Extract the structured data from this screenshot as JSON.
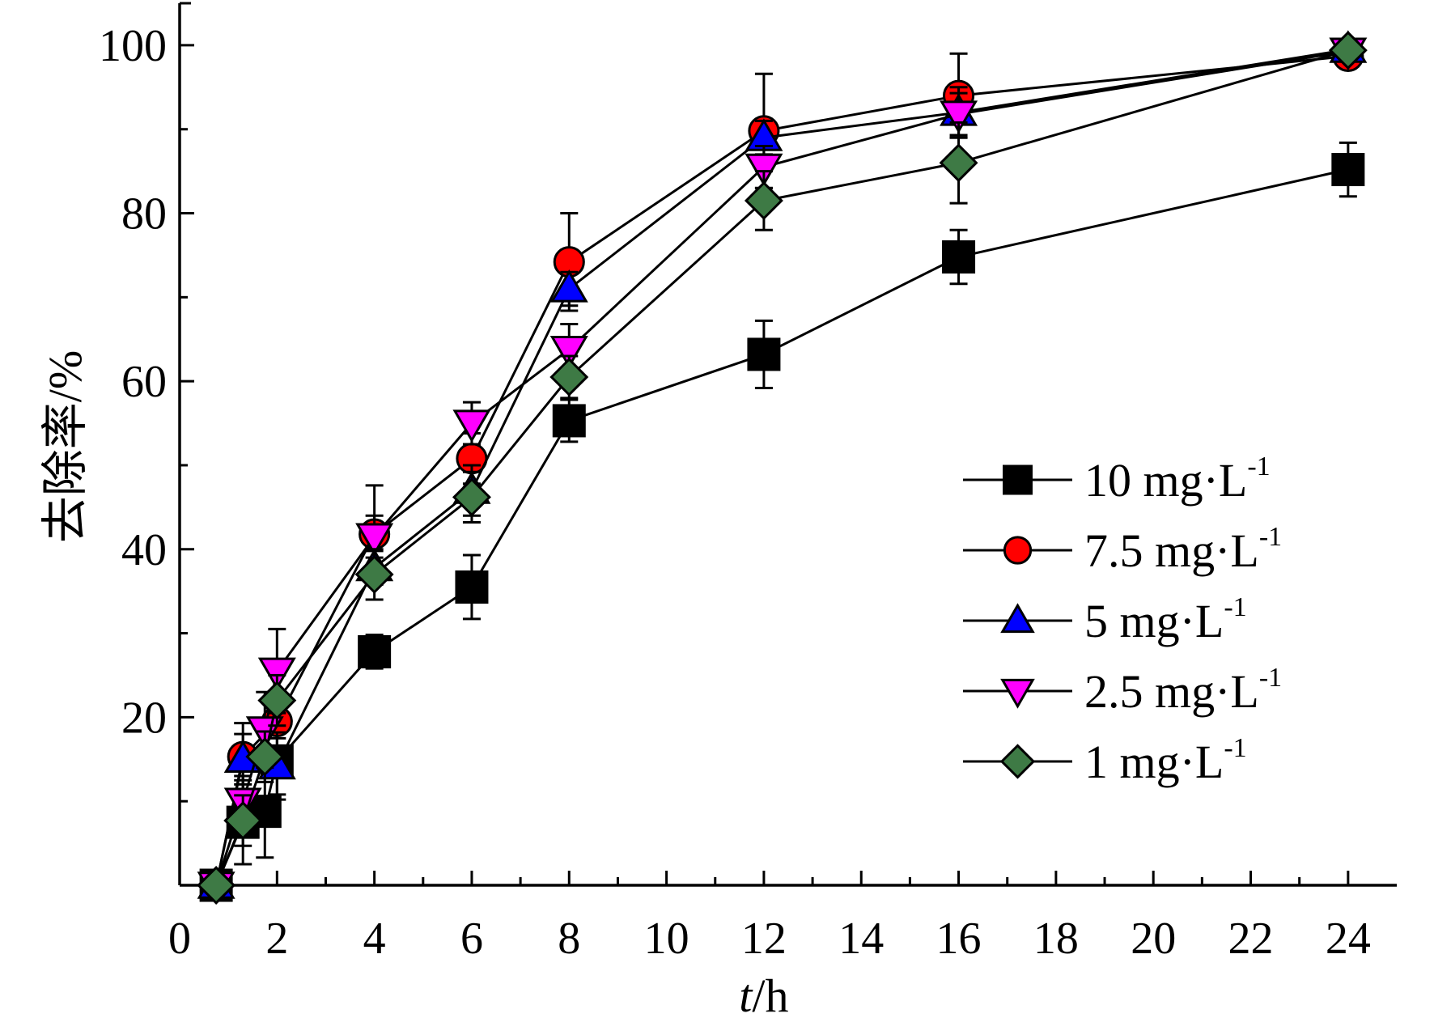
{
  "chart_data": {
    "type": "line",
    "xlabel_italic": "t",
    "xlabel_rest": "/h",
    "ylabel": "去除率/%",
    "xlim": [
      0,
      25
    ],
    "ylim": [
      0,
      105
    ],
    "x_ticks": [
      0,
      2,
      4,
      6,
      8,
      10,
      12,
      14,
      16,
      18,
      20,
      22,
      24
    ],
    "y_ticks": [
      20,
      40,
      60,
      80,
      100
    ],
    "x_tick_labels": [
      "0",
      "2",
      "4",
      "6",
      "8",
      "10",
      "12",
      "14",
      "16",
      "18",
      "20",
      "22",
      "24"
    ],
    "y_tick_labels": [
      "20",
      "40",
      "60",
      "80",
      "100"
    ],
    "legend_position": "center-right",
    "series": [
      {
        "name": "10 mg·L",
        "name_sup": "-1",
        "marker": "square",
        "color": "#000000",
        "points": [
          {
            "x": 0.75,
            "y": 0,
            "err": 0
          },
          {
            "x": 1.3,
            "y": 7.5,
            "err": 5
          },
          {
            "x": 1.75,
            "y": 8.8,
            "err": 5.5
          },
          {
            "x": 2,
            "y": 14.8,
            "err": 4
          },
          {
            "x": 4,
            "y": 27.8,
            "err": 2
          },
          {
            "x": 6,
            "y": 35.5,
            "err": 3.8
          },
          {
            "x": 8,
            "y": 55.3,
            "err": 2.5
          },
          {
            "x": 12,
            "y": 63.2,
            "err": 4
          },
          {
            "x": 16,
            "y": 74.8,
            "err": 3.2
          },
          {
            "x": 24,
            "y": 85.2,
            "err": 3.2
          }
        ]
      },
      {
        "name": "7.5 mg·L",
        "name_sup": "-1",
        "marker": "circle",
        "color": "#ff0000",
        "points": [
          {
            "x": 0.75,
            "y": 0,
            "err": 0
          },
          {
            "x": 1.3,
            "y": 15.3,
            "err": 4
          },
          {
            "x": 2,
            "y": 19.5,
            "err": 2
          },
          {
            "x": 4,
            "y": 41.8,
            "err": 5.8
          },
          {
            "x": 6,
            "y": 50.8,
            "err": 3
          },
          {
            "x": 8,
            "y": 74.2,
            "err": 5.8
          },
          {
            "x": 12,
            "y": 89.8,
            "err": 6.8
          },
          {
            "x": 16,
            "y": 94,
            "err": 5
          },
          {
            "x": 24,
            "y": 98.7,
            "err": 0.8
          }
        ]
      },
      {
        "name": "5 mg·L",
        "name_sup": "-1",
        "marker": "triangle-up",
        "color": "#0000ff",
        "points": [
          {
            "x": 0.75,
            "y": 0,
            "err": 0
          },
          {
            "x": 1.3,
            "y": 15,
            "err": 3
          },
          {
            "x": 2,
            "y": 14.2,
            "err": 4
          },
          {
            "x": 4,
            "y": 37.8,
            "err": 2
          },
          {
            "x": 6,
            "y": 47,
            "err": 3
          },
          {
            "x": 8,
            "y": 71,
            "err": 2
          },
          {
            "x": 12,
            "y": 89,
            "err": 2
          },
          {
            "x": 16,
            "y": 92,
            "err": 3
          },
          {
            "x": 24,
            "y": 99.5,
            "err": 0.5
          }
        ]
      },
      {
        "name": "2.5 mg·L",
        "name_sup": "-1",
        "marker": "triangle-down",
        "color": "#ff00ff",
        "points": [
          {
            "x": 0.75,
            "y": 0,
            "err": 0
          },
          {
            "x": 1.3,
            "y": 10,
            "err": 3
          },
          {
            "x": 1.75,
            "y": 18.5,
            "err": 4.5
          },
          {
            "x": 2,
            "y": 25.5,
            "err": 5
          },
          {
            "x": 4,
            "y": 41.5,
            "err": 2.5
          },
          {
            "x": 6,
            "y": 55,
            "err": 2.5
          },
          {
            "x": 8,
            "y": 63.8,
            "err": 3
          },
          {
            "x": 12,
            "y": 85.5,
            "err": 2.5
          },
          {
            "x": 16,
            "y": 91.8,
            "err": 2.5
          },
          {
            "x": 24,
            "y": 99.3,
            "err": 0.5
          }
        ]
      },
      {
        "name": "1 mg·L",
        "name_sup": "-1",
        "marker": "diamond",
        "color": "#3e7a45",
        "points": [
          {
            "x": 0.75,
            "y": 0,
            "err": 0
          },
          {
            "x": 1.3,
            "y": 7.7,
            "err": 3
          },
          {
            "x": 1.75,
            "y": 15.3,
            "err": 3
          },
          {
            "x": 2,
            "y": 22,
            "err": 3
          },
          {
            "x": 4,
            "y": 37,
            "err": 3
          },
          {
            "x": 6,
            "y": 46.2,
            "err": 3
          },
          {
            "x": 8,
            "y": 60.5,
            "err": 2.5
          },
          {
            "x": 12,
            "y": 81.5,
            "err": 3.5
          },
          {
            "x": 16,
            "y": 86,
            "err": 4.8
          },
          {
            "x": 24,
            "y": 99.4,
            "err": 0.5
          }
        ]
      }
    ]
  }
}
